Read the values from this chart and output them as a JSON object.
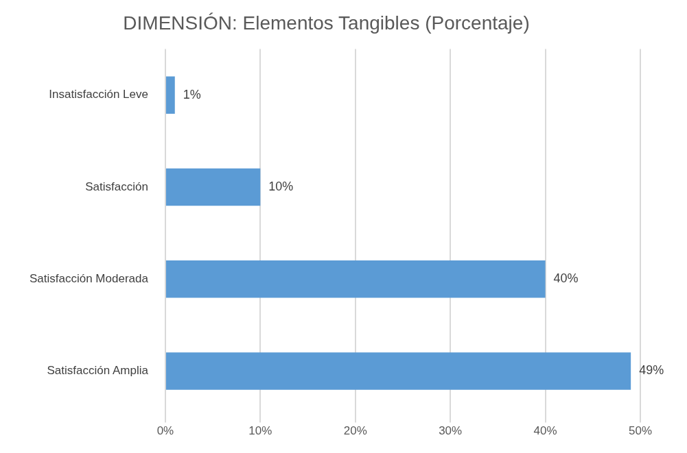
{
  "chart_data": {
    "type": "bar",
    "orientation": "horizontal",
    "title": "DIMENSIÓN: Elementos Tangibles (Porcentaje)",
    "categories": [
      "Insatisfacción Leve",
      "Satisfacción",
      "Satisfacción Moderada",
      "Satisfacción Amplia"
    ],
    "values": [
      1,
      10,
      40,
      49
    ],
    "color": "#5b9bd5",
    "value_labels": [
      "1%",
      "10%",
      "40%",
      "49%"
    ],
    "xlim": [
      0,
      50
    ],
    "xticks": [
      {
        "value": 0,
        "label": "0%"
      },
      {
        "value": 10,
        "label": "10%"
      },
      {
        "value": 20,
        "label": "20%"
      },
      {
        "value": 30,
        "label": "30%"
      },
      {
        "value": 40,
        "label": "40%"
      },
      {
        "value": 50,
        "label": "50%"
      }
    ],
    "grid": "x",
    "legend": false
  }
}
